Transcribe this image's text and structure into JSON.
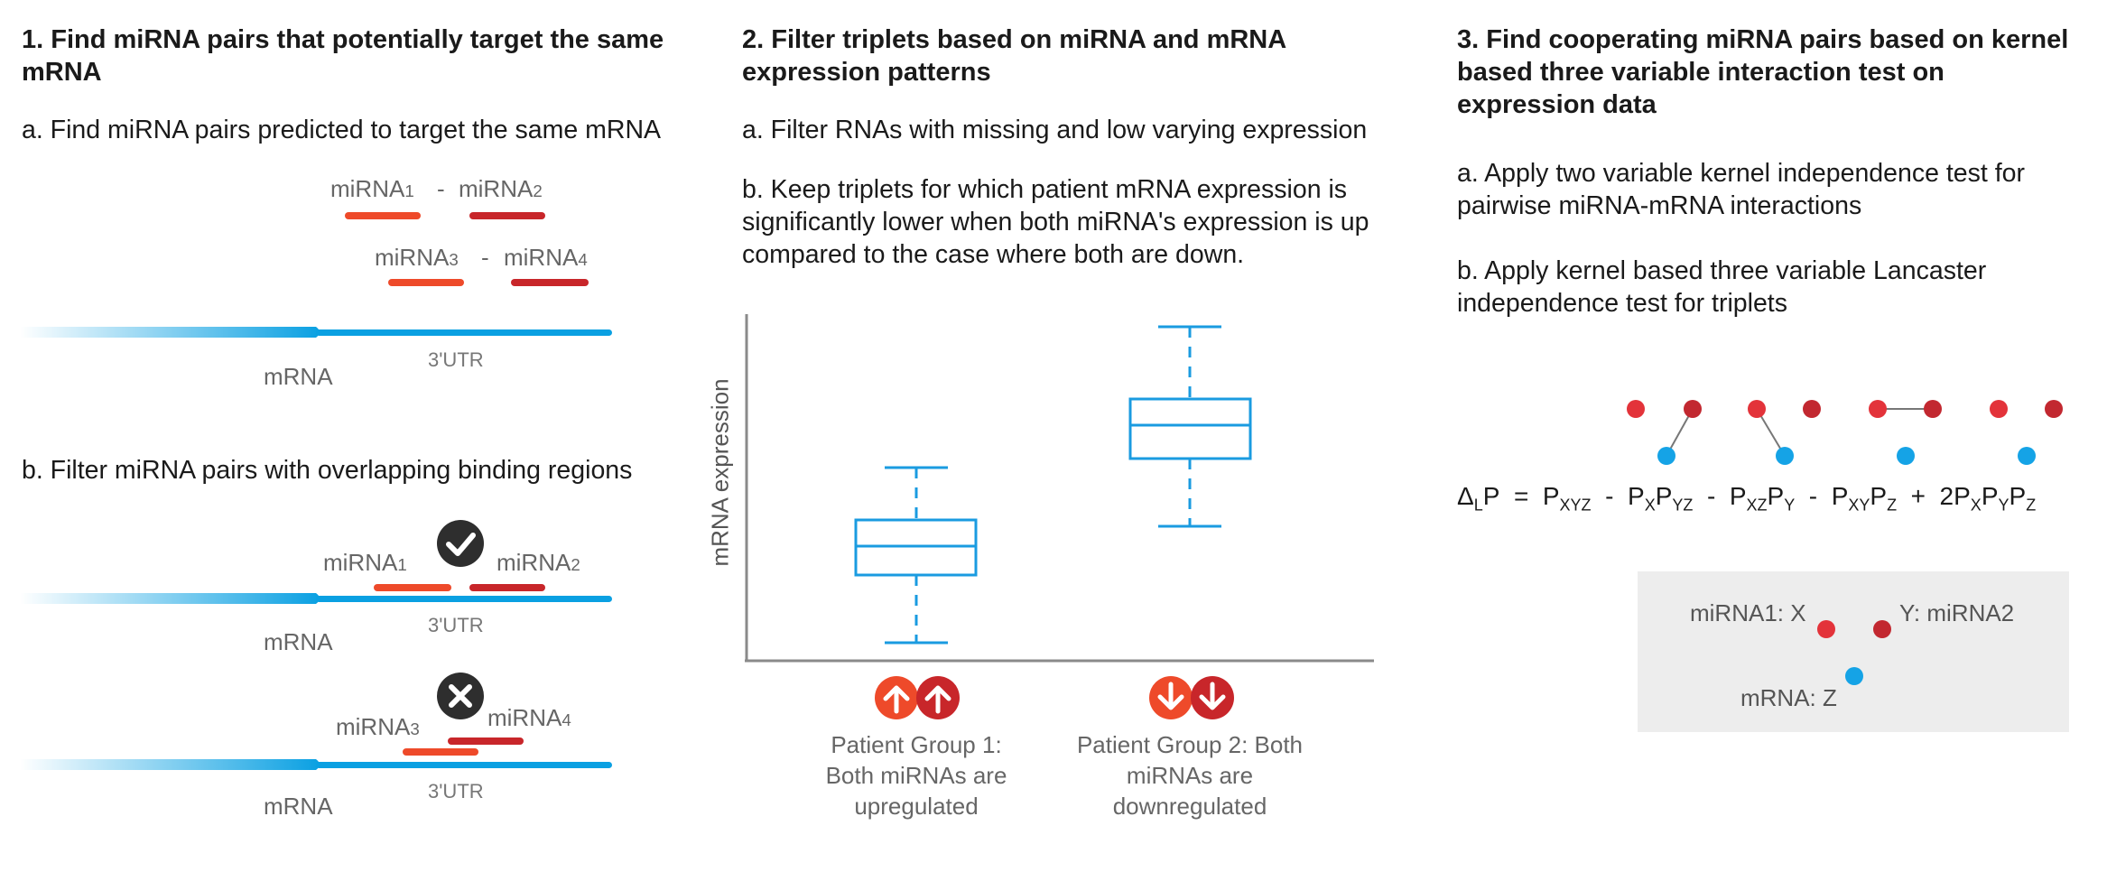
{
  "col1": {
    "title": "1. Find miRNA pairs that potentially target the same mRNA",
    "step_a": "a. Find miRNA pairs predicted to target the same mRNA",
    "step_b": "b. Filter miRNA pairs with overlapping binding regions",
    "mirna1": "miRNA",
    "mirna2": "miRNA",
    "mirna3": "miRNA",
    "mirna4": "miRNA",
    "sub1": "1",
    "sub2": "2",
    "sub3": "3",
    "sub4": "4",
    "dash": "-",
    "mrna": "mRNA",
    "utr": "3'UTR"
  },
  "col2": {
    "title": "2. Filter triplets based on miRNA and mRNA expression patterns",
    "step_a": "a. Filter RNAs with missing and low varying expression",
    "step_b": "b. Keep triplets for which patient mRNA expression is significantly lower when both miRNA's expression is up compared to the case where both are down.",
    "ylabel": "mRNA expression",
    "group1": "Patient Group 1: Both miRNAs are upregulated",
    "group2": "Patient Group 2: Both miRNAs are downregulated"
  },
  "col3": {
    "title": "3. Find cooperating miRNA pairs based on kernel based three variable interaction test on expression data",
    "step_a": "a. Apply two variable kernel independence test for pairwise miRNA-mRNA interactions",
    "step_b": "b. Apply kernel based three variable Lancaster independence test for triplets",
    "legend_x": "miRNA1: X",
    "legend_y": "Y: miRNA2",
    "legend_z": "mRNA: Z"
  },
  "colors": {
    "mrna_blue": "#0aa0e2",
    "mirna_orange": "#ee4a2a",
    "mirna_red": "#c8262a",
    "box_blue": "#1a9be0",
    "dot_red1": "#e3333a",
    "dot_red2": "#c22830",
    "dot_blue": "#15a3e6",
    "icon_dark": "#2e2e2e",
    "legend_bg": "#ededed"
  }
}
